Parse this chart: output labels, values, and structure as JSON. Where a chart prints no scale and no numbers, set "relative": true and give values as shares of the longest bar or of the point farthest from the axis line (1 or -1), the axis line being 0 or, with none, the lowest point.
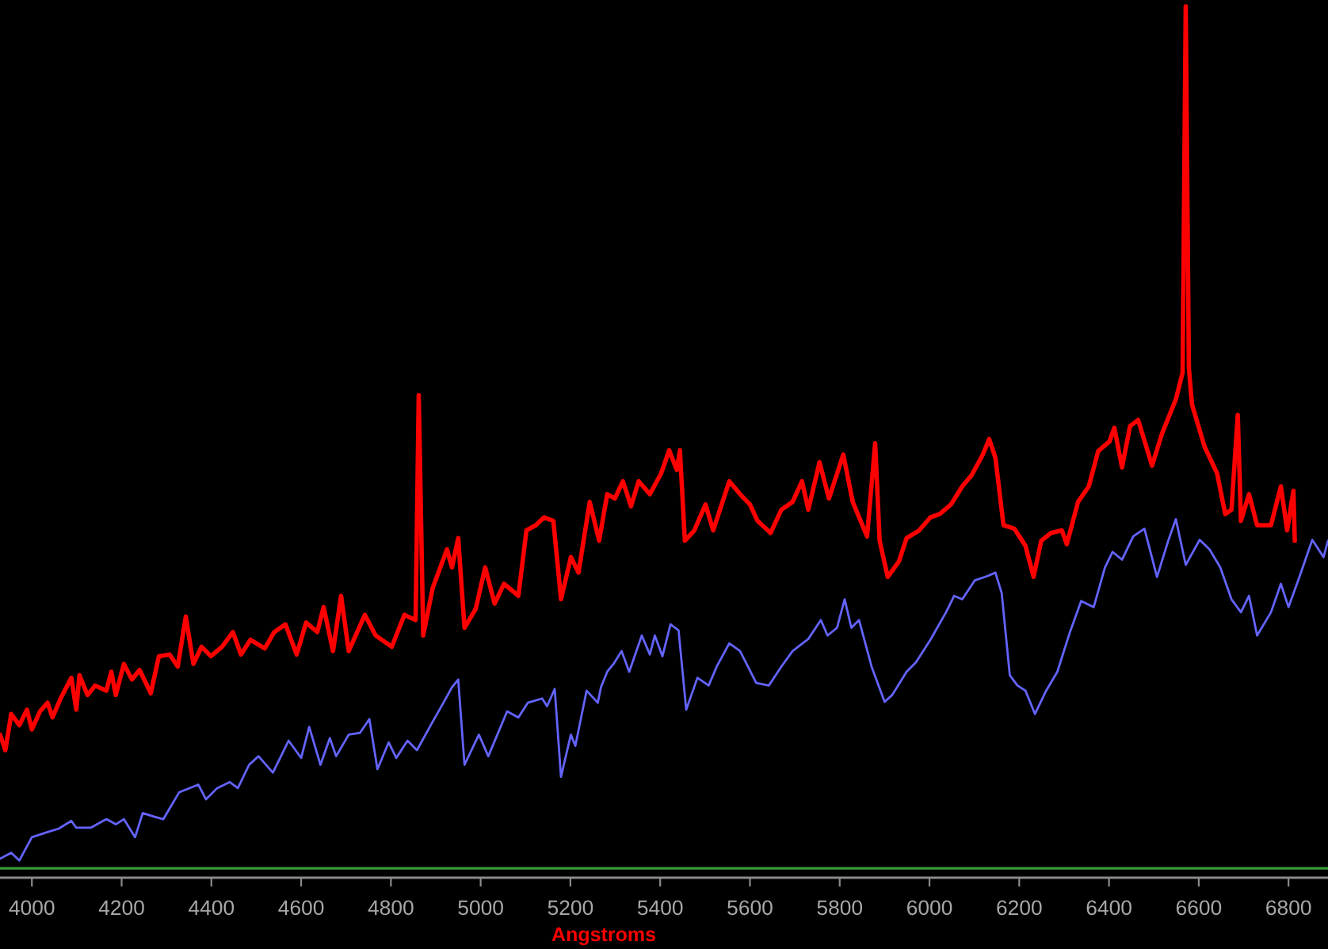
{
  "chart_data": {
    "type": "line",
    "relative": true,
    "xlabel": "Angstroms",
    "xlim": [
      3929,
      6888
    ],
    "xticks": [
      4000,
      4200,
      4400,
      4600,
      4800,
      5000,
      5200,
      5400,
      5600,
      5800,
      6000,
      6200,
      6400,
      6600,
      6800
    ],
    "ref_lines": [
      {
        "axis": "y",
        "value": 0,
        "color": "#3a9a3a"
      }
    ],
    "series": [
      {
        "color": "#ff0000",
        "x": [
          3929,
          3941,
          3954,
          3972,
          3989,
          4000,
          4018,
          4035,
          4046,
          4064,
          4088,
          4099,
          4106,
          4124,
          4141,
          4166,
          4177,
          4187,
          4205,
          4223,
          4240,
          4265,
          4283,
          4307,
          4325,
          4343,
          4360,
          4378,
          4399,
          4424,
          4448,
          4466,
          4487,
          4519,
          4540,
          4565,
          4590,
          4611,
          4636,
          4650,
          4671,
          4689,
          4706,
          4742,
          4766,
          4802,
          4830,
          4855,
          4862,
          4872,
          4893,
          4925,
          4936,
          4950,
          4964,
          4989,
          5010,
          5031,
          5052,
          5084,
          5102,
          5123,
          5141,
          5162,
          5179,
          5201,
          5218,
          5243,
          5264,
          5282,
          5299,
          5317,
          5335,
          5352,
          5377,
          5402,
          5420,
          5437,
          5444,
          5455,
          5476,
          5501,
          5518,
          5554,
          5578,
          5600,
          5617,
          5646,
          5670,
          5695,
          5716,
          5730,
          5755,
          5776,
          5808,
          5829,
          5861,
          5879,
          5889,
          5907,
          5932,
          5949,
          5977,
          6002,
          6023,
          6048,
          6073,
          6094,
          6119,
          6133,
          6147,
          6165,
          6189,
          6214,
          6232,
          6249,
          6271,
          6295,
          6306,
          6331,
          6355,
          6376,
          6401,
          6412,
          6429,
          6447,
          6465,
          6496,
          6518,
          6549,
          6564,
          6571,
          6578,
          6585,
          6613,
          6641,
          6659,
          6673,
          6687,
          6694,
          6712,
          6730,
          6761,
          6783,
          6797,
          6811,
          6814
        ],
        "values": [
          0.155,
          0.137,
          0.179,
          0.166,
          0.184,
          0.161,
          0.182,
          0.192,
          0.175,
          0.197,
          0.221,
          0.184,
          0.224,
          0.201,
          0.212,
          0.206,
          0.228,
          0.201,
          0.237,
          0.219,
          0.23,
          0.203,
          0.246,
          0.248,
          0.234,
          0.292,
          0.237,
          0.257,
          0.246,
          0.257,
          0.274,
          0.248,
          0.265,
          0.255,
          0.274,
          0.283,
          0.248,
          0.285,
          0.274,
          0.303,
          0.252,
          0.316,
          0.252,
          0.294,
          0.27,
          0.257,
          0.294,
          0.288,
          0.549,
          0.27,
          0.325,
          0.37,
          0.349,
          0.383,
          0.279,
          0.301,
          0.349,
          0.307,
          0.33,
          0.316,
          0.392,
          0.398,
          0.407,
          0.403,
          0.312,
          0.361,
          0.343,
          0.425,
          0.38,
          0.434,
          0.429,
          0.449,
          0.42,
          0.449,
          0.434,
          0.458,
          0.485,
          0.462,
          0.485,
          0.38,
          0.392,
          0.422,
          0.392,
          0.449,
          0.434,
          0.422,
          0.403,
          0.389,
          0.416,
          0.425,
          0.449,
          0.416,
          0.471,
          0.429,
          0.48,
          0.425,
          0.385,
          0.493,
          0.38,
          0.338,
          0.356,
          0.383,
          0.392,
          0.407,
          0.411,
          0.422,
          0.443,
          0.456,
          0.48,
          0.498,
          0.476,
          0.398,
          0.394,
          0.374,
          0.338,
          0.38,
          0.389,
          0.392,
          0.376,
          0.425,
          0.443,
          0.484,
          0.495,
          0.511,
          0.465,
          0.513,
          0.52,
          0.467,
          0.504,
          0.544,
          0.575,
          1.0,
          0.58,
          0.538,
          0.489,
          0.458,
          0.411,
          0.416,
          0.526,
          0.403,
          0.434,
          0.398,
          0.398,
          0.443,
          0.392,
          0.438,
          0.38
        ]
      },
      {
        "color": "#6464ff",
        "x": [
          3929,
          3954,
          3972,
          4000,
          4035,
          4060,
          4088,
          4099,
          4131,
          4166,
          4187,
          4205,
          4230,
          4247,
          4272,
          4293,
          4328,
          4371,
          4388,
          4413,
          4441,
          4459,
          4484,
          4505,
          4537,
          4572,
          4600,
          4618,
          4643,
          4664,
          4678,
          4706,
          4731,
          4752,
          4770,
          4795,
          4812,
          4837,
          4858,
          4893,
          4918,
          4936,
          4950,
          4964,
          4996,
          5017,
          5059,
          5084,
          5105,
          5137,
          5148,
          5165,
          5179,
          5201,
          5211,
          5236,
          5261,
          5268,
          5282,
          5296,
          5314,
          5331,
          5359,
          5377,
          5388,
          5405,
          5423,
          5441,
          5458,
          5483,
          5508,
          5526,
          5554,
          5578,
          5614,
          5642,
          5670,
          5695,
          5730,
          5758,
          5773,
          5794,
          5811,
          5826,
          5843,
          5871,
          5900,
          5917,
          5949,
          5970,
          6002,
          6037,
          6055,
          6073,
          6101,
          6129,
          6147,
          6161,
          6179,
          6196,
          6214,
          6235,
          6260,
          6285,
          6313,
          6338,
          6366,
          6391,
          6408,
          6429,
          6454,
          6479,
          6507,
          6532,
          6549,
          6571,
          6602,
          6624,
          6648,
          6673,
          6694,
          6712,
          6730,
          6761,
          6783,
          6800,
          6825,
          6853,
          6878,
          6888
        ],
        "values": [
          0.011,
          0.018,
          0.009,
          0.036,
          0.042,
          0.046,
          0.055,
          0.047,
          0.047,
          0.057,
          0.051,
          0.057,
          0.036,
          0.064,
          0.06,
          0.057,
          0.088,
          0.097,
          0.08,
          0.093,
          0.1,
          0.093,
          0.12,
          0.13,
          0.111,
          0.148,
          0.128,
          0.164,
          0.12,
          0.151,
          0.13,
          0.155,
          0.157,
          0.173,
          0.115,
          0.146,
          0.128,
          0.148,
          0.137,
          0.17,
          0.193,
          0.21,
          0.219,
          0.12,
          0.155,
          0.13,
          0.182,
          0.175,
          0.192,
          0.197,
          0.188,
          0.208,
          0.106,
          0.155,
          0.142,
          0.206,
          0.192,
          0.21,
          0.228,
          0.237,
          0.252,
          0.228,
          0.27,
          0.248,
          0.27,
          0.246,
          0.283,
          0.276,
          0.184,
          0.221,
          0.212,
          0.234,
          0.261,
          0.252,
          0.215,
          0.212,
          0.234,
          0.252,
          0.266,
          0.288,
          0.27,
          0.279,
          0.312,
          0.279,
          0.288,
          0.234,
          0.193,
          0.201,
          0.228,
          0.239,
          0.265,
          0.297,
          0.316,
          0.312,
          0.334,
          0.339,
          0.343,
          0.319,
          0.224,
          0.212,
          0.206,
          0.179,
          0.206,
          0.228,
          0.274,
          0.31,
          0.303,
          0.349,
          0.367,
          0.358,
          0.385,
          0.394,
          0.338,
          0.38,
          0.405,
          0.352,
          0.381,
          0.37,
          0.349,
          0.312,
          0.297,
          0.316,
          0.27,
          0.297,
          0.33,
          0.303,
          0.339,
          0.381,
          0.361,
          0.38
        ]
      }
    ]
  }
}
